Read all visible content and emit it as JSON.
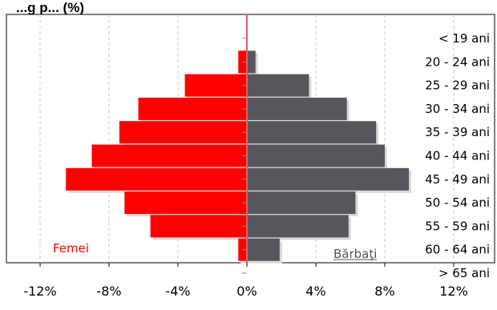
{
  "chart_data": {
    "type": "bar",
    "orientation": "horizontal",
    "title_fragment": "...g p... (%)",
    "categories": [
      "> 65 ani",
      "60 - 64 ani",
      "55 - 59 ani",
      "50 - 54 ani",
      "45 - 49 ani",
      "40 - 44 ani",
      "35 - 39 ani",
      "30 - 34 ani",
      "25 - 29 ani",
      "20 - 24 ani",
      "< 19 ani"
    ],
    "series": [
      {
        "name": "Femei",
        "color": "#ff0000",
        "values": [
          0.0,
          -0.5,
          -5.6,
          -7.1,
          -10.5,
          -9.0,
          -7.4,
          -6.3,
          -3.6,
          -0.5,
          0.0
        ]
      },
      {
        "name": "Bărbaţi",
        "color": "#58565c",
        "values": [
          0.0,
          1.9,
          5.9,
          6.3,
          9.4,
          8.0,
          7.5,
          5.8,
          3.6,
          0.5,
          0.0
        ]
      }
    ],
    "xticks": [
      "-12%",
      "-8%",
      "-4%",
      "0%",
      "4%",
      "8%",
      "12%"
    ],
    "xlim": [
      -12,
      12
    ],
    "grid": true,
    "center_line_color": "#e06060"
  }
}
